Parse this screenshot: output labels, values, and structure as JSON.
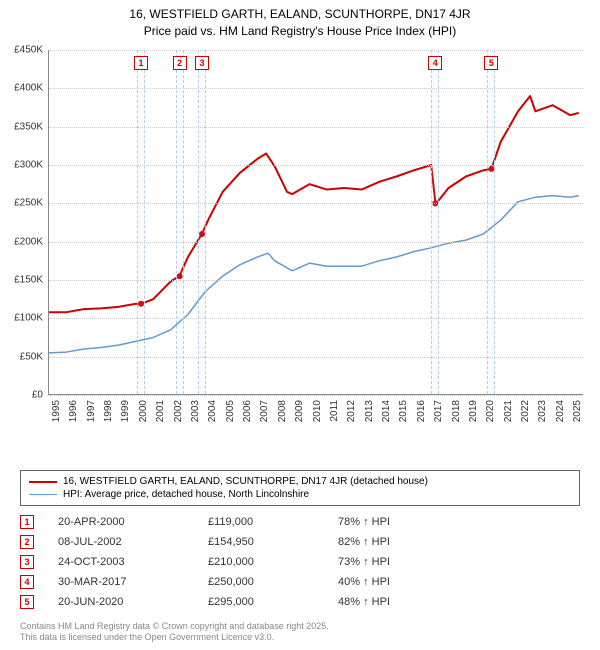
{
  "title_line1": "16, WESTFIELD GARTH, EALAND, SCUNTHORPE, DN17 4JR",
  "title_line2": "Price paid vs. HM Land Registry's House Price Index (HPI)",
  "chart": {
    "type": "line",
    "x_start": 1995,
    "x_end": 2025.8,
    "ylim": [
      0,
      450000
    ],
    "ytick_step": 50000,
    "ytick_labels": [
      "£0",
      "£50K",
      "£100K",
      "£150K",
      "£200K",
      "£250K",
      "£300K",
      "£350K",
      "£400K",
      "£450K"
    ],
    "xticks": [
      1995,
      1996,
      1997,
      1998,
      1999,
      2000,
      2001,
      2002,
      2003,
      2004,
      2005,
      2006,
      2007,
      2008,
      2009,
      2010,
      2011,
      2012,
      2013,
      2014,
      2015,
      2016,
      2017,
      2018,
      2019,
      2020,
      2021,
      2022,
      2023,
      2024,
      2025
    ],
    "background_color": "#ffffff",
    "grid_color": "#cccccc",
    "series": [
      {
        "name": "property",
        "label": "16, WESTFIELD GARTH, EALAND, SCUNTHORPE, DN17 4JR (detached house)",
        "color": "#cc0000",
        "width": 2,
        "points": [
          [
            1995,
            108000
          ],
          [
            1996,
            108000
          ],
          [
            1997,
            112000
          ],
          [
            1998,
            113000
          ],
          [
            1999,
            115000
          ],
          [
            2000,
            119000
          ],
          [
            2000.3,
            119000
          ],
          [
            2001,
            125000
          ],
          [
            2002,
            148000
          ],
          [
            2002.5,
            154950
          ],
          [
            2003,
            180000
          ],
          [
            2003.8,
            210000
          ],
          [
            2004.2,
            230000
          ],
          [
            2005,
            265000
          ],
          [
            2006,
            290000
          ],
          [
            2007,
            308000
          ],
          [
            2007.5,
            315000
          ],
          [
            2008,
            298000
          ],
          [
            2008.7,
            265000
          ],
          [
            2009,
            262000
          ],
          [
            2010,
            275000
          ],
          [
            2011,
            268000
          ],
          [
            2012,
            270000
          ],
          [
            2013,
            268000
          ],
          [
            2014,
            278000
          ],
          [
            2015,
            285000
          ],
          [
            2016,
            293000
          ],
          [
            2017,
            300000
          ],
          [
            2017.25,
            250000
          ],
          [
            2017.3,
            250000
          ],
          [
            2018,
            270000
          ],
          [
            2019,
            285000
          ],
          [
            2020,
            293000
          ],
          [
            2020.47,
            295000
          ],
          [
            2021,
            330000
          ],
          [
            2022,
            370000
          ],
          [
            2022.7,
            390000
          ],
          [
            2023,
            370000
          ],
          [
            2024,
            378000
          ],
          [
            2025,
            365000
          ],
          [
            2025.5,
            368000
          ]
        ]
      },
      {
        "name": "hpi",
        "label": "HPI: Average price, detached house, North Lincolnshire",
        "color": "#6699cc",
        "width": 1.5,
        "points": [
          [
            1995,
            55000
          ],
          [
            1996,
            56000
          ],
          [
            1997,
            60000
          ],
          [
            1998,
            62000
          ],
          [
            1999,
            65000
          ],
          [
            2000,
            70000
          ],
          [
            2001,
            75000
          ],
          [
            2002,
            85000
          ],
          [
            2003,
            105000
          ],
          [
            2004,
            135000
          ],
          [
            2005,
            155000
          ],
          [
            2006,
            170000
          ],
          [
            2007,
            180000
          ],
          [
            2007.6,
            185000
          ],
          [
            2008,
            175000
          ],
          [
            2009,
            162000
          ],
          [
            2010,
            172000
          ],
          [
            2011,
            168000
          ],
          [
            2012,
            168000
          ],
          [
            2013,
            168000
          ],
          [
            2014,
            175000
          ],
          [
            2015,
            180000
          ],
          [
            2016,
            187000
          ],
          [
            2017,
            192000
          ],
          [
            2018,
            198000
          ],
          [
            2019,
            202000
          ],
          [
            2020,
            210000
          ],
          [
            2021,
            228000
          ],
          [
            2022,
            252000
          ],
          [
            2023,
            258000
          ],
          [
            2024,
            260000
          ],
          [
            2025,
            258000
          ],
          [
            2025.5,
            260000
          ]
        ]
      }
    ],
    "markers": [
      {
        "n": "1",
        "x": 2000.3,
        "date": "20-APR-2000",
        "price": "£119,000",
        "pct": "78% ↑ HPI"
      },
      {
        "n": "2",
        "x": 2002.52,
        "date": "08-JUL-2002",
        "price": "£154,950",
        "pct": "82% ↑ HPI"
      },
      {
        "n": "3",
        "x": 2003.81,
        "date": "24-OCT-2003",
        "price": "£210,000",
        "pct": "73% ↑ HPI"
      },
      {
        "n": "4",
        "x": 2017.24,
        "date": "30-MAR-2017",
        "price": "£250,000",
        "pct": "40% ↑ HPI"
      },
      {
        "n": "5",
        "x": 2020.47,
        "date": "20-JUN-2020",
        "price": "£295,000",
        "pct": "48% ↑ HPI"
      }
    ]
  },
  "footer_line1": "Contains HM Land Registry data © Crown copyright and database right 2025.",
  "footer_line2": "This data is licensed under the Open Government Licence v3.0."
}
